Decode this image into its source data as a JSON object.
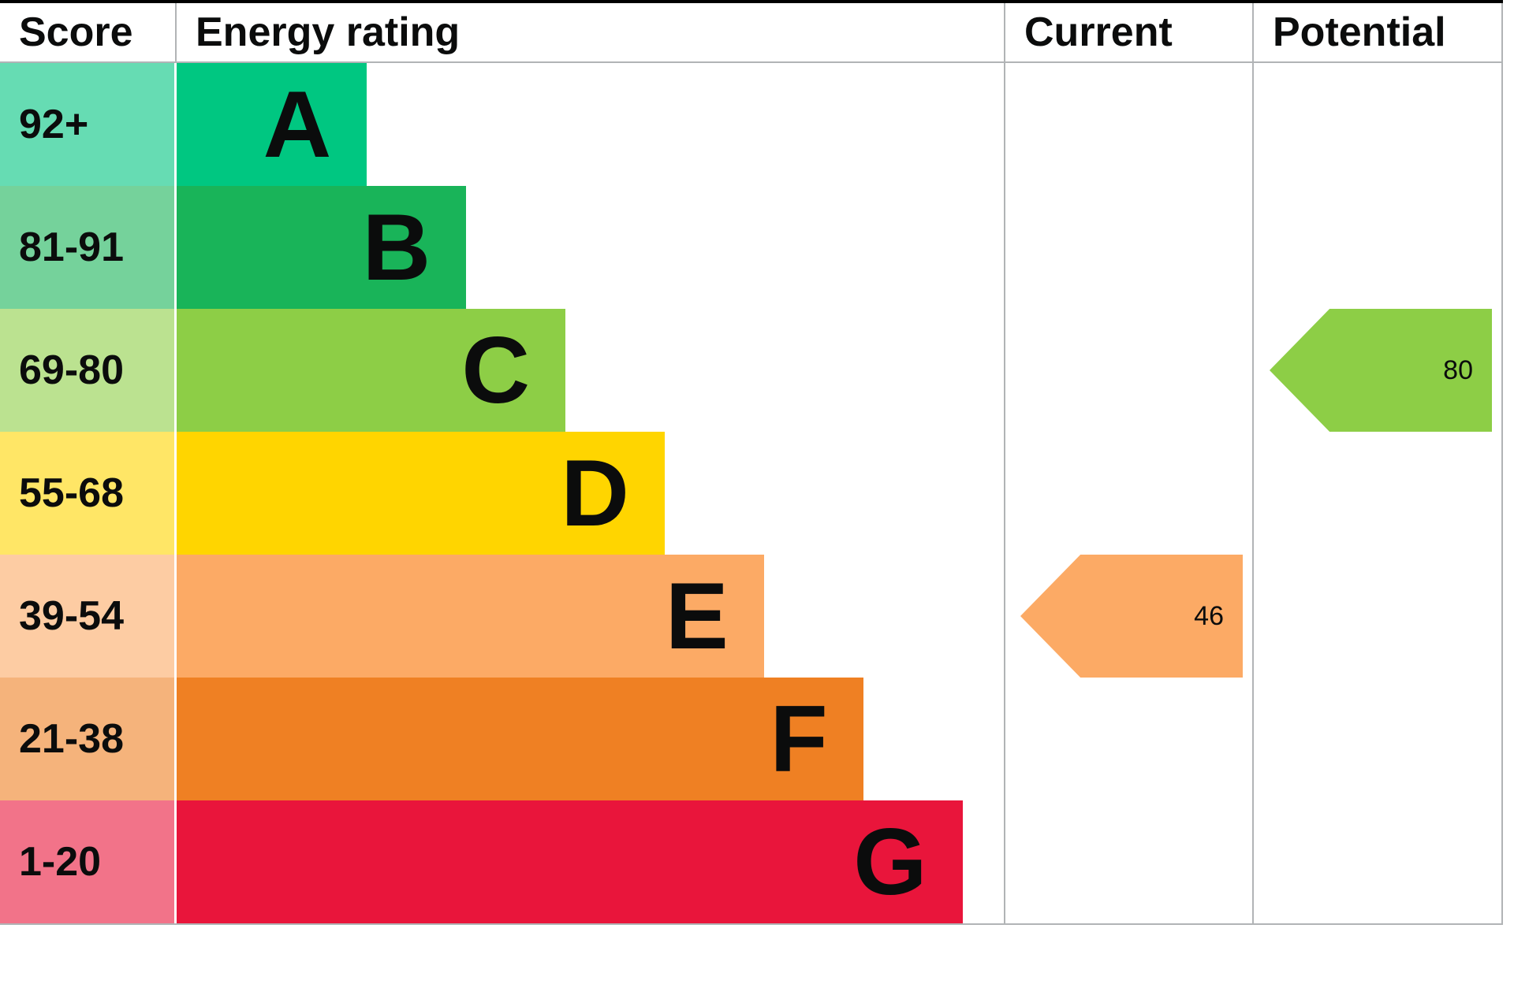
{
  "header": {
    "score_label": "Score",
    "energy_rating_label": "Energy rating",
    "current_label": "Current",
    "potential_label": "Potential"
  },
  "chart_data": {
    "type": "bar",
    "subtype": "epc-energy-rating",
    "title": "Energy rating",
    "legend_position": "none",
    "grid": false,
    "bands": [
      {
        "score_range": "92+",
        "letter": "A",
        "color": "#00c781",
        "score_bg": "#66dcb3",
        "bar_fraction": 0.23
      },
      {
        "score_range": "81-91",
        "letter": "B",
        "color": "#19b459",
        "score_bg": "#75d29b",
        "bar_fraction": 0.35
      },
      {
        "score_range": "69-80",
        "letter": "C",
        "color": "#8dce46",
        "score_bg": "#bbe290",
        "bar_fraction": 0.47
      },
      {
        "score_range": "55-68",
        "letter": "D",
        "color": "#ffd500",
        "score_bg": "#ffe666",
        "bar_fraction": 0.59
      },
      {
        "score_range": "39-54",
        "letter": "E",
        "color": "#fcaa65",
        "score_bg": "#fdcca3",
        "bar_fraction": 0.71
      },
      {
        "score_range": "21-38",
        "letter": "F",
        "color": "#ef8023",
        "score_bg": "#f5b37b",
        "bar_fraction": 0.83
      },
      {
        "score_range": "1-20",
        "letter": "G",
        "color": "#e9153b",
        "score_bg": "#f27389",
        "bar_fraction": 0.95
      }
    ],
    "current": {
      "value": "46",
      "band": "E",
      "color": "#fcaa65"
    },
    "potential": {
      "value": "80",
      "band": "C",
      "color": "#8dce46"
    }
  }
}
